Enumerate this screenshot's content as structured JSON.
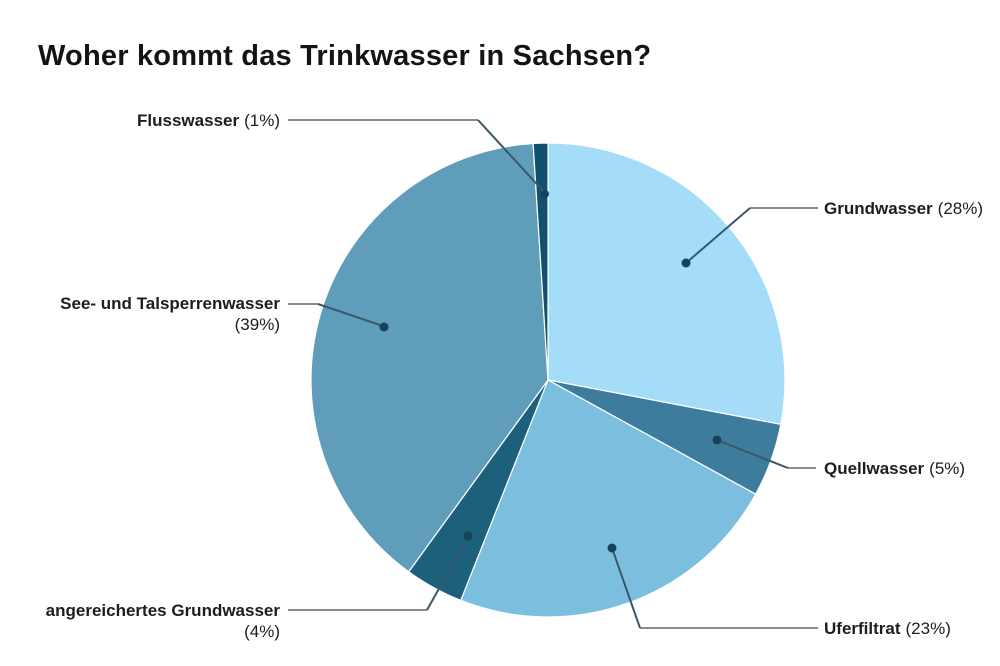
{
  "page": {
    "background": "#ffffff"
  },
  "title": "Woher kommt das Trinkwasser in Sachsen?",
  "chart_data": {
    "type": "pie",
    "title": "Woher kommt das Trinkwasser in Sachsen?",
    "unit": "%",
    "start_angle_deg": 0,
    "direction": "clockwise",
    "total": 100,
    "slices": [
      {
        "label": "Grundwasser",
        "value": 28,
        "pct_label": "(28%)",
        "color": "#a5dcf8"
      },
      {
        "label": "Quellwasser",
        "value": 5,
        "pct_label": "(5%)",
        "color": "#3d7c9c"
      },
      {
        "label": "Uferfiltrat",
        "value": 23,
        "pct_label": "(23%)",
        "color": "#7cbedd"
      },
      {
        "label": "angereichertes Grundwasser",
        "value": 4,
        "pct_label": "(4%)",
        "color": "#1d607c"
      },
      {
        "label": "See- und Talsperrenwasser",
        "value": 39,
        "pct_label": "(39%)",
        "color": "#5f9dba"
      },
      {
        "label": "Flusswasser",
        "value": 1,
        "pct_label": "(1%)",
        "color": "#11506e"
      }
    ],
    "legend_position": "callout-labels",
    "leader_line_gray": "#8a8a8a",
    "leader_line_dark": "#3a586b",
    "dot_color": "#16435c",
    "slice_separator_color": "#ffffff"
  }
}
